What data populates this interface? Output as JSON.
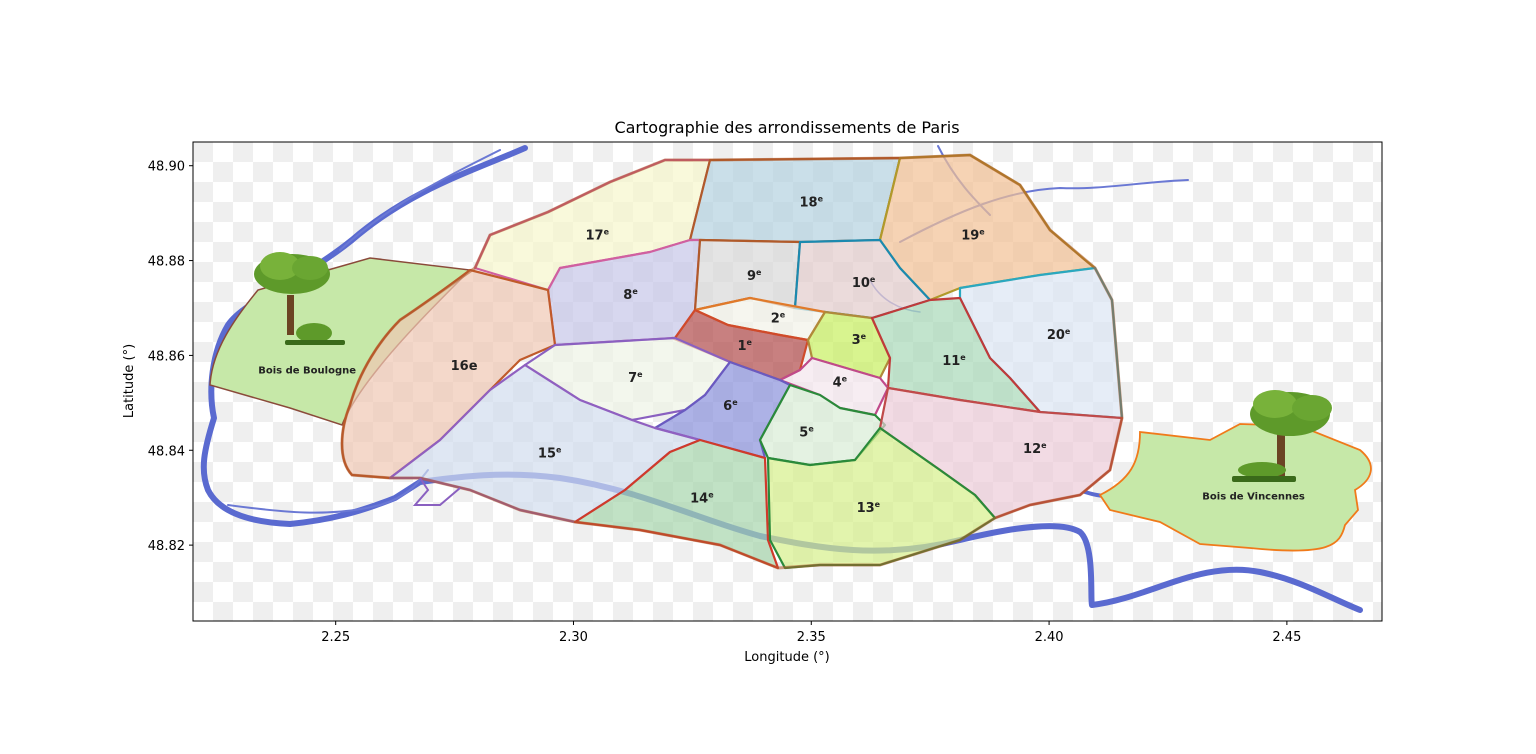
{
  "chart_data": {
    "type": "map",
    "title": "Cartographie des arrondissements de Paris",
    "xlabel": "Longitude (°)",
    "ylabel": "Latitude (°)",
    "xlim": [
      2.22,
      2.47
    ],
    "ylim": [
      48.804,
      48.905
    ],
    "xticks": [
      2.25,
      2.3,
      2.35,
      2.4,
      2.45
    ],
    "xtick_labels": [
      "2.25",
      "2.30",
      "2.35",
      "2.40",
      "2.45"
    ],
    "yticks": [
      48.82,
      48.84,
      48.86,
      48.88,
      48.9
    ],
    "ytick_labels": [
      "48.82",
      "48.84",
      "48.86",
      "48.88",
      "48.90"
    ],
    "grid": false,
    "arrondissements": [
      {
        "id": "1",
        "num": "1",
        "suffix": "e",
        "lon": 2.336,
        "lat": 48.8622,
        "fill": "#b14a4a",
        "edge": "#d04a2a"
      },
      {
        "id": "2",
        "num": "2",
        "suffix": "e",
        "lon": 2.343,
        "lat": 48.868,
        "fill": "#f2f2e8",
        "edge": "#e07a2a"
      },
      {
        "id": "3",
        "num": "3",
        "suffix": "e",
        "lon": 2.36,
        "lat": 48.8635,
        "fill": "#c8f060",
        "edge": "#b08a3a"
      },
      {
        "id": "4",
        "num": "4",
        "suffix": "e",
        "lon": 2.356,
        "lat": 48.8545,
        "fill": "#f4e6ec",
        "edge": "#c04a8a"
      },
      {
        "id": "5",
        "num": "5",
        "suffix": "e",
        "lon": 2.349,
        "lat": 48.844,
        "fill": "#d8ecd6",
        "edge": "#2a8a3a"
      },
      {
        "id": "6",
        "num": "6",
        "suffix": "e",
        "lon": 2.333,
        "lat": 48.8495,
        "fill": "#8a92dc",
        "edge": "#6a5ac0"
      },
      {
        "id": "7",
        "num": "7",
        "suffix": "e",
        "lon": 2.313,
        "lat": 48.8555,
        "fill": "#eef4e6",
        "edge": "#8a60c0"
      },
      {
        "id": "8",
        "num": "8",
        "suffix": "e",
        "lon": 2.312,
        "lat": 48.873,
        "fill": "#c6c6e8",
        "edge": "#d060a0"
      },
      {
        "id": "9",
        "num": "9",
        "suffix": "e",
        "lon": 2.338,
        "lat": 48.877,
        "fill": "#d8d8d8",
        "edge": "#b05a2a"
      },
      {
        "id": "10",
        "num": "10",
        "suffix": "e",
        "lon": 2.361,
        "lat": 48.8755,
        "fill": "#e2cccc",
        "edge": "#1a8ab0"
      },
      {
        "id": "11",
        "num": "11",
        "suffix": "e",
        "lon": 2.38,
        "lat": 48.859,
        "fill": "#a8d8b8",
        "edge": "#c03a3a"
      },
      {
        "id": "12",
        "num": "12",
        "suffix": "e",
        "lon": 2.397,
        "lat": 48.8405,
        "fill": "#ecccd8",
        "edge": "#c04a4a"
      },
      {
        "id": "13",
        "num": "13",
        "suffix": "e",
        "lon": 2.362,
        "lat": 48.828,
        "fill": "#d6f08a",
        "edge": "#2a8a3a"
      },
      {
        "id": "14",
        "num": "14",
        "suffix": "e",
        "lon": 2.327,
        "lat": 48.83,
        "fill": "#a6d6ac",
        "edge": "#d03a2a"
      },
      {
        "id": "15",
        "num": "15",
        "suffix": "e",
        "lon": 2.295,
        "lat": 48.8395,
        "fill": "#d2ddee",
        "edge": "#9060c0"
      },
      {
        "id": "16",
        "num": "16e",
        "suffix": "",
        "lon": 2.277,
        "lat": 48.858,
        "fill": "#f0c8b4",
        "edge": "#c05a2a"
      },
      {
        "id": "17",
        "num": "17",
        "suffix": "e",
        "lon": 2.305,
        "lat": 48.8855,
        "fill": "#f6f6cc",
        "edge": "#d060a0"
      },
      {
        "id": "18",
        "num": "18",
        "suffix": "e",
        "lon": 2.35,
        "lat": 48.8925,
        "fill": "#b4d2e0",
        "edge": "#b05a2a"
      },
      {
        "id": "19",
        "num": "19",
        "suffix": "e",
        "lon": 2.384,
        "lat": 48.8855,
        "fill": "#f2c094",
        "edge": "#b09a2a"
      },
      {
        "id": "20",
        "num": "20",
        "suffix": "e",
        "lon": 2.402,
        "lat": 48.8645,
        "fill": "#dce6f4",
        "edge": "#2aa8c0"
      }
    ],
    "parks": [
      {
        "id": "boulogne",
        "name": "Bois de Boulogne",
        "lon": 2.244,
        "lat": 48.857,
        "fill": "#c6e8a8",
        "edge": "#8a4a3a"
      },
      {
        "id": "vincennes",
        "name": "Bois de Vincennes",
        "lon": 2.443,
        "lat": 48.8305,
        "fill": "#c6e8a8",
        "edge": "#f07a1a"
      }
    ],
    "river": {
      "name": "Seine",
      "color": "#5a6ad0"
    }
  }
}
